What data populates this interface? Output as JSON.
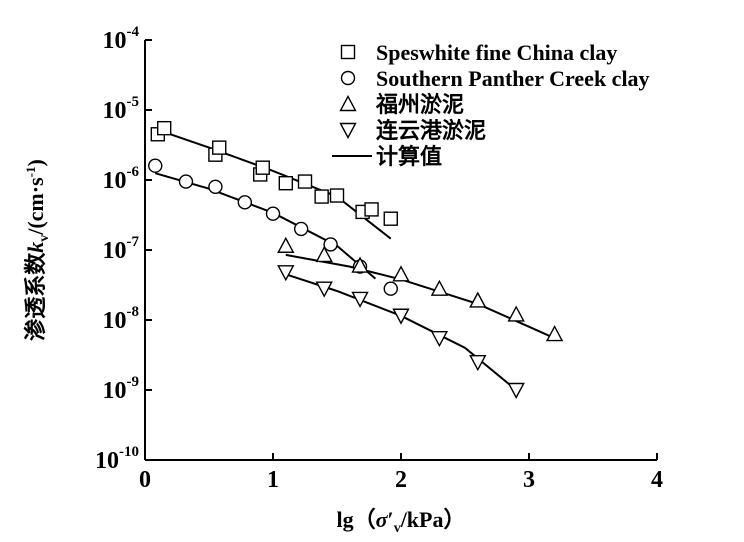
{
  "chart_data": {
    "type": "scatter",
    "title": "",
    "xlabel": "lg（σ′v/kPa）",
    "xlabel_parts": {
      "prefix": "lg（",
      "sigma": "σ",
      "prime": "′",
      "sub": "v",
      "suffix": "/kPa）"
    },
    "ylabel": "渗透系数kv/(cm·s-1)",
    "ylabel_parts": {
      "chinese": "渗透系数",
      "k": "k",
      "sub": "v",
      "unit": "/(cm·s",
      "sup": "-1",
      "close": ")"
    },
    "xlim": [
      0,
      4
    ],
    "ylim_log10": [
      -10,
      -4
    ],
    "yscale": "log",
    "x_ticks": [
      {
        "v": 0,
        "label": "0"
      },
      {
        "v": 1,
        "label": "1"
      },
      {
        "v": 2,
        "label": "2"
      },
      {
        "v": 3,
        "label": "3"
      },
      {
        "v": 4,
        "label": "4"
      }
    ],
    "y_ticks": [
      {
        "exp": -4,
        "base": "10",
        "sup": "-4"
      },
      {
        "exp": -5,
        "base": "10",
        "sup": "-5"
      },
      {
        "exp": -6,
        "base": "10",
        "sup": "-6"
      },
      {
        "exp": -7,
        "base": "10",
        "sup": "-7"
      },
      {
        "exp": -8,
        "base": "10",
        "sup": "-8"
      },
      {
        "exp": -9,
        "base": "10",
        "sup": "-9"
      },
      {
        "exp": -10,
        "base": "10",
        "sup": "-10"
      }
    ],
    "legend_position": "top-right",
    "series": [
      {
        "name": "Speswhite fine China clay",
        "marker": "square",
        "x": [
          0.1,
          0.15,
          0.55,
          0.58,
          0.9,
          0.92,
          1.1,
          1.25,
          1.38,
          1.5,
          1.7,
          1.77,
          1.92
        ],
        "y": [
          4.5e-06,
          5.5e-06,
          2.3e-06,
          2.9e-06,
          1.2e-06,
          1.5e-06,
          9e-07,
          9.5e-07,
          5.8e-07,
          6e-07,
          3.5e-07,
          3.8e-07,
          2.8e-07
        ]
      },
      {
        "name": "Southern Panther Creek clay",
        "marker": "circle",
        "x": [
          0.08,
          0.32,
          0.55,
          0.78,
          1.0,
          1.22,
          1.45,
          1.68,
          1.92
        ],
        "y": [
          1.6e-06,
          9.5e-07,
          8e-07,
          4.8e-07,
          3.3e-07,
          2e-07,
          1.2e-07,
          5.8e-08,
          2.8e-08
        ]
      },
      {
        "name": "福州淤泥",
        "marker": "triangle-up",
        "x": [
          1.1,
          1.4,
          1.68,
          2.0,
          2.3,
          2.6,
          2.9,
          3.2
        ],
        "y": [
          1.15e-07,
          8.5e-08,
          6e-08,
          4.5e-08,
          2.8e-08,
          1.9e-08,
          1.2e-08,
          6.3e-09
        ]
      },
      {
        "name": "连云港淤泥",
        "marker": "triangle-down",
        "x": [
          1.1,
          1.4,
          1.68,
          2.0,
          2.3,
          2.6,
          2.9
        ],
        "y": [
          4.8e-08,
          2.8e-08,
          2e-08,
          1.15e-08,
          5.5e-09,
          2.5e-09,
          1e-09
        ]
      }
    ],
    "fit_lines": [
      {
        "name": "计算值",
        "x": [
          0.1,
          0.5,
          1.0,
          1.5,
          1.92
        ],
        "y": [
          5.2e-06,
          2.9e-06,
          1.35e-06,
          5.8e-07,
          1.45e-07
        ]
      },
      {
        "name": "计算值",
        "x": [
          0.08,
          0.5,
          1.0,
          1.5,
          1.8
        ],
        "y": [
          1.25e-06,
          7.5e-07,
          3.4e-07,
          1.15e-07,
          3.9e-08
        ]
      },
      {
        "name": "计算值",
        "x": [
          1.1,
          1.6,
          2.0,
          2.6,
          3.2
        ],
        "y": [
          8.5e-08,
          5.8e-08,
          3.8e-08,
          1.7e-08,
          5.5e-09
        ]
      },
      {
        "name": "计算值",
        "x": [
          1.1,
          1.5,
          2.0,
          2.5,
          2.9
        ],
        "y": [
          4.5e-08,
          2.6e-08,
          1.15e-08,
          4e-09,
          1e-09
        ]
      }
    ],
    "legend": [
      {
        "marker": "square",
        "label": "Speswhite fine China clay"
      },
      {
        "marker": "circle",
        "label": "Southern Panther Creek clay"
      },
      {
        "marker": "triangle-up",
        "label": "福州淤泥"
      },
      {
        "marker": "triangle-down",
        "label": "连云港淤泥"
      },
      {
        "marker": "line",
        "label": "计算值"
      }
    ]
  }
}
